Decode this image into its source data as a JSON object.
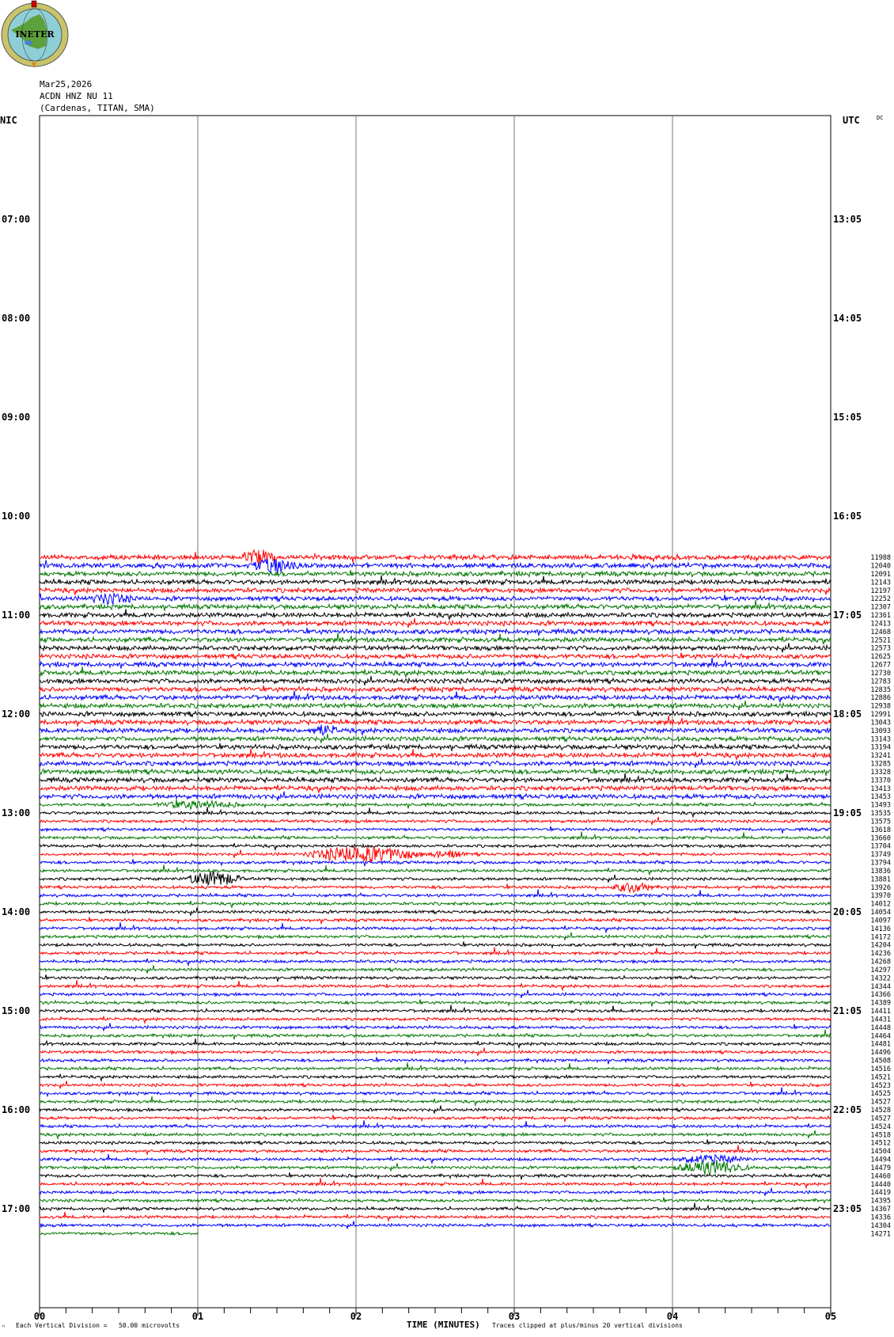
{
  "logo": {
    "text": "INETER"
  },
  "header": {
    "date": "Mar25,2026",
    "station": "ACDN HNZ NU 11",
    "location": "(Cardenas, TITAN, SMA)"
  },
  "left_timezone": "NIC",
  "right_timezone": "UTC",
  "dc_label": "DC",
  "footer": {
    "scale_mark": "ⁿ",
    "vertical_division": "Each Vertical Division =   50.00 microvolts",
    "xlabel": "TIME (MINUTES)",
    "clip_note": "Traces clipped at plus/minus 20 vertical divisions"
  },
  "chart_data": {
    "type": "line",
    "subtype": "helicorder",
    "xlabel": "TIME (MINUTES)",
    "xlim": [
      0,
      5
    ],
    "x_ticks": [
      "00",
      "01",
      "02",
      "03",
      "04",
      "05"
    ],
    "grid": "vertical lines every minute",
    "trace_interval_minutes": 5,
    "left_hour_labels": [
      "07:00",
      "08:00",
      "09:00",
      "10:00",
      "11:00",
      "12:00",
      "13:00",
      "14:00",
      "15:00",
      "16:00",
      "17:00"
    ],
    "right_hour_labels": [
      "13:05",
      "14:05",
      "15:05",
      "16:05",
      "17:05",
      "18:05",
      "19:05",
      "20:05",
      "21:05",
      "22:05",
      "23:05"
    ],
    "first_trace_start_local": "10:25",
    "last_trace_end_minute": 1,
    "trace_colors": [
      "#ff0000",
      "#0000ff",
      "#007700",
      "#000000"
    ],
    "trace_values": [
      11988,
      12040,
      12091,
      12143,
      12197,
      12252,
      12307,
      12361,
      12413,
      12468,
      12521,
      12573,
      12625,
      12677,
      12730,
      12783,
      12835,
      12886,
      12938,
      12991,
      13043,
      13093,
      13143,
      13194,
      13241,
      13285,
      13328,
      13370,
      13413,
      13453,
      13493,
      13535,
      13575,
      13618,
      13660,
      13704,
      13749,
      13794,
      13836,
      13881,
      13926,
      13970,
      14012,
      14054,
      14097,
      14136,
      14172,
      14204,
      14236,
      14268,
      14297,
      14322,
      14344,
      14366,
      14389,
      14411,
      14431,
      14448,
      14464,
      14481,
      14496,
      14508,
      14516,
      14521,
      14523,
      14525,
      14527,
      14528,
      14527,
      14524,
      14518,
      14512,
      14504,
      14494,
      14479,
      14460,
      14440,
      14419,
      14395,
      14367,
      14336,
      14304,
      14271
    ]
  }
}
